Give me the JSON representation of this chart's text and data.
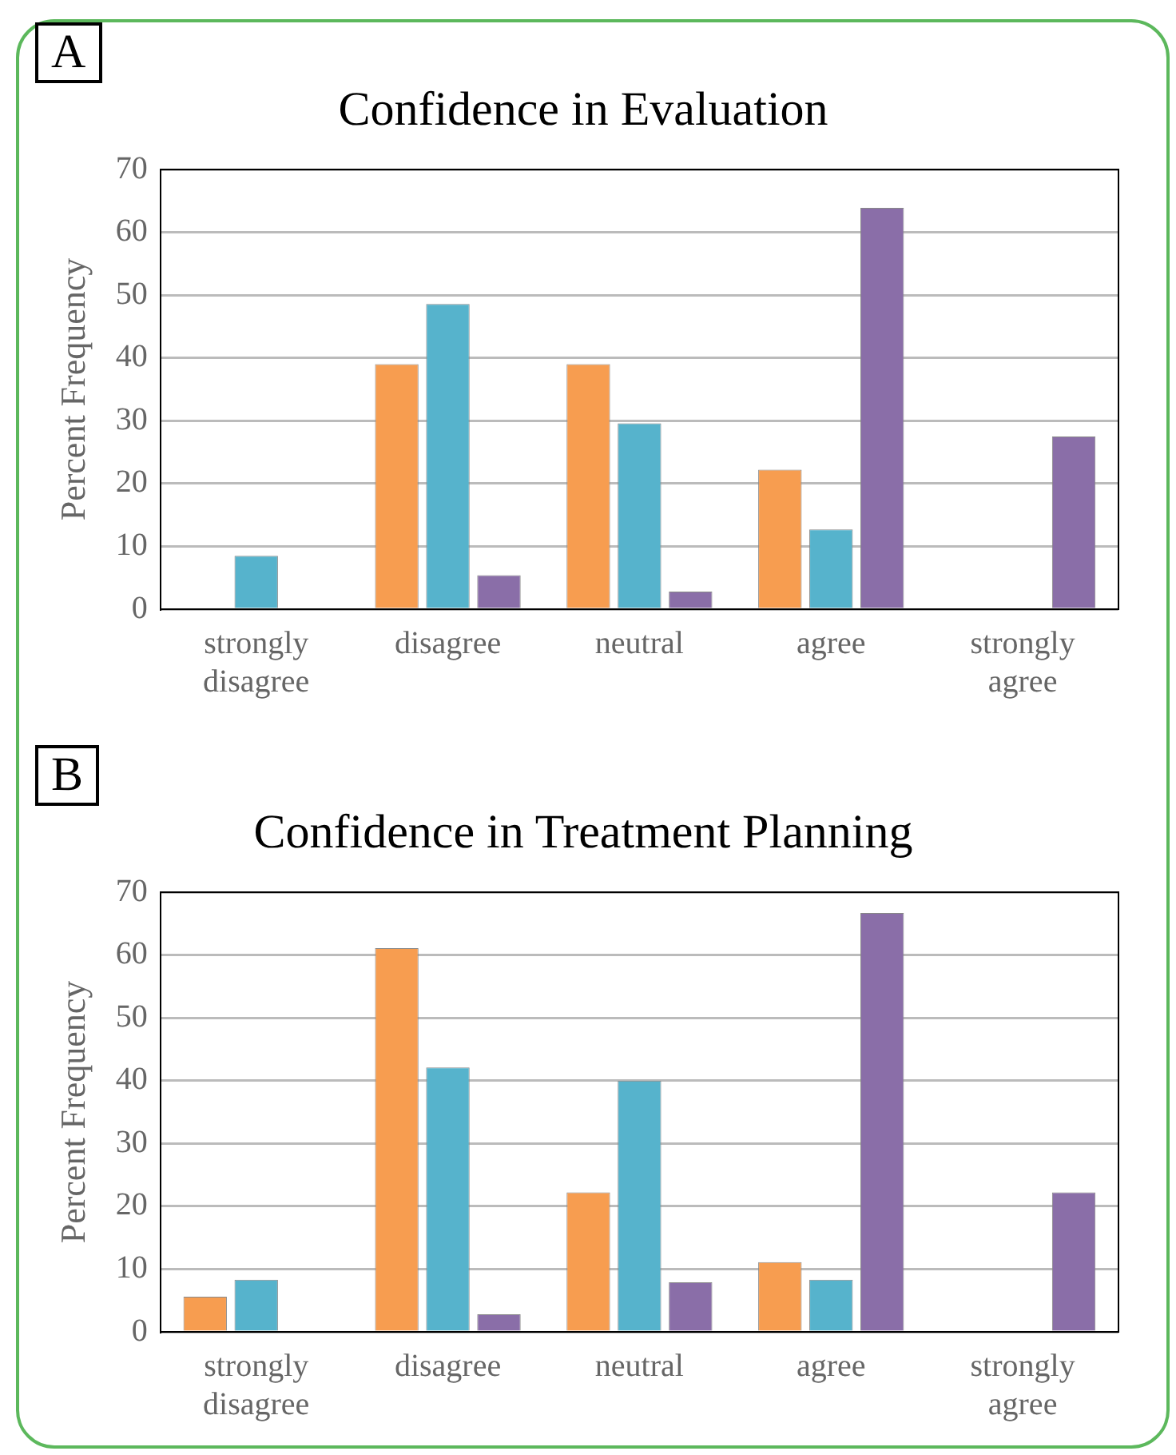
{
  "chart_data": [
    {
      "type": "bar",
      "title": "Confidence in Evaluation",
      "ylabel": "Percent Frequency",
      "annotations": [
        "A"
      ],
      "categories": [
        "strongly disagree",
        "disagree",
        "neutral",
        "agree",
        "strongly agree"
      ],
      "series": [
        {
          "color": "#f79d50",
          "values": [
            0,
            39,
            39,
            22.2,
            0
          ]
        },
        {
          "color": "#56b3cc",
          "values": [
            8.5,
            48.6,
            29.6,
            12.7,
            0
          ]
        },
        {
          "color": "#8a6ea8",
          "values": [
            0,
            5.4,
            2.8,
            63.9,
            27.5
          ]
        }
      ],
      "ylim": [
        0,
        70
      ],
      "yticks": [
        0,
        10,
        20,
        30,
        40,
        50,
        60,
        70
      ],
      "grid": "y"
    },
    {
      "type": "bar",
      "title": "Confidence in Treatment Planning",
      "ylabel": "Percent Frequency",
      "annotations": [
        "B"
      ],
      "categories": [
        "strongly disagree",
        "disagree",
        "neutral",
        "agree",
        "strongly agree"
      ],
      "series": [
        {
          "color": "#f79d50",
          "values": [
            5.6,
            61.1,
            22.2,
            11.1,
            0
          ]
        },
        {
          "color": "#56b3cc",
          "values": [
            8.3,
            42.1,
            40,
            8.3,
            0
          ]
        },
        {
          "color": "#8a6ea8",
          "values": [
            0,
            2.8,
            7.9,
            66.7,
            22.2
          ]
        }
      ],
      "ylim": [
        0,
        70
      ],
      "yticks": [
        0,
        10,
        20,
        30,
        40,
        50,
        60,
        70
      ],
      "grid": "y"
    }
  ]
}
